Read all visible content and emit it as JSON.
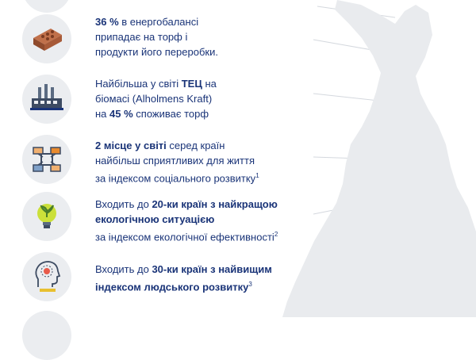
{
  "colors": {
    "navy": "#1a3478",
    "orange": "#e88a2e",
    "circle_bg": "#ebedf0",
    "map_fill": "#e9ebee",
    "map_line": "#d4d8de"
  },
  "items": [
    {
      "icon": "brick-icon",
      "line1_bold": "36 %",
      "line1_rest": " в енергобалансі",
      "line2": "припадає на торф і",
      "line3": "продукти його переробки."
    },
    {
      "icon": "factory-icon",
      "line1_pre": "Найбільша у світі ",
      "line1_bold": "ТЕЦ",
      "line1_post": " на",
      "line2": "біомасі (Alholmens Kraft)",
      "line3_pre": "на ",
      "line3_bold": "45 %",
      "line3_post": " споживає торф"
    },
    {
      "icon": "joined-hands-icon",
      "line1_bold": "2 місце у світі",
      "line1_rest": " серед країн",
      "line2": "найбільш сприятливих для життя",
      "line3_text": "за індексом соціального розвитку",
      "line3_sup": "1"
    },
    {
      "icon": "lightbulb-plant-icon",
      "line1_pre": "Входить до ",
      "line1_bold": "20-ки країн з найкращою",
      "line2_bold": "екологічною ситуацією",
      "line3_text": "за індексом екологічної ефективності",
      "line3_sup": "2"
    },
    {
      "icon": "human-head-icon",
      "line1_pre": "Входить до ",
      "line1_bold": "30-ки країн з найвищим",
      "line2_bold": "індексом людського розвитку",
      "line2_sup": "3"
    }
  ]
}
